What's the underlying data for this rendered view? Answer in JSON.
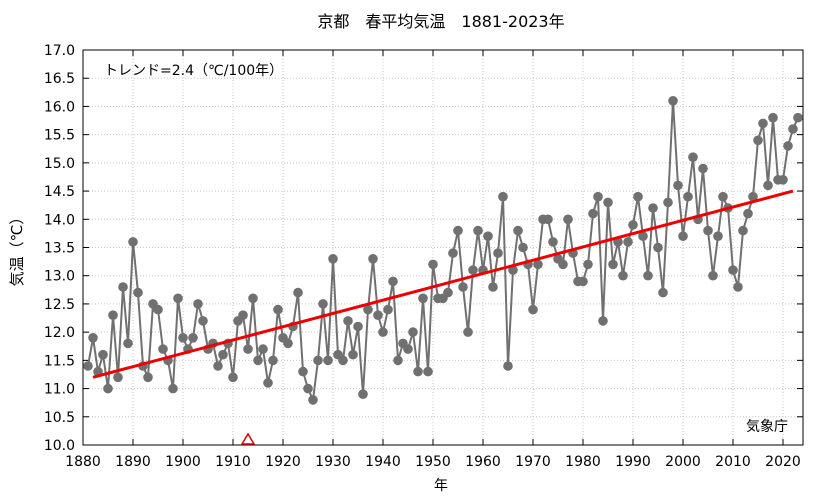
{
  "chart_data": {
    "type": "line",
    "title": "京都　春平均気温　1881-2023年",
    "xlabel": "年",
    "ylabel": "気温（℃）",
    "xlim": [
      1880,
      2024
    ],
    "ylim": [
      10.0,
      17.0
    ],
    "x_ticks": [
      1880,
      1890,
      1900,
      1910,
      1920,
      1930,
      1940,
      1950,
      1960,
      1970,
      1980,
      1990,
      2000,
      2010,
      2020
    ],
    "y_ticks": [
      "10.0",
      "10.5",
      "11.0",
      "11.5",
      "12.0",
      "12.5",
      "13.0",
      "13.5",
      "14.0",
      "14.5",
      "15.0",
      "15.5",
      "16.0",
      "16.5",
      "17.0"
    ],
    "annotation": "トレンド=2.4（℃/100年）",
    "source": "気象庁",
    "grid": true,
    "colors": {
      "series": "#707070",
      "trend": "#ee0000",
      "marker": "#dd0000"
    },
    "series": [
      {
        "x_start": 1881,
        "values": [
          11.4,
          11.9,
          11.3,
          11.6,
          11.0,
          12.3,
          11.2,
          12.8,
          11.8,
          13.6,
          12.7,
          11.4,
          11.2,
          12.5,
          12.4,
          11.7,
          11.5,
          11.0,
          12.6,
          11.9,
          11.7,
          11.9,
          12.5,
          12.2,
          11.7,
          11.8,
          11.4,
          11.6,
          11.8,
          11.2,
          12.2,
          12.3,
          11.7,
          12.6,
          11.5,
          11.7,
          11.1,
          11.5,
          12.4,
          11.9,
          11.8,
          12.1,
          12.7,
          11.3,
          11.0,
          10.8,
          11.5,
          12.5,
          11.5,
          13.3,
          11.6,
          11.5,
          12.2,
          11.6,
          12.1,
          10.9,
          12.4,
          13.3,
          12.3,
          12.0,
          12.4,
          12.9,
          11.5,
          11.8,
          11.7,
          12.0,
          11.3,
          12.6,
          11.3,
          13.2,
          12.6,
          12.6,
          12.7,
          13.4,
          13.8,
          12.8,
          12.0,
          13.1,
          13.8,
          13.1,
          13.7,
          12.8,
          13.4,
          14.4,
          11.4,
          13.1,
          13.8,
          13.5,
          13.2,
          12.4,
          13.2,
          14.0,
          14.0,
          13.6,
          13.3,
          13.2,
          14.0,
          13.4,
          12.9,
          12.9,
          13.2,
          14.1,
          14.4,
          12.2,
          14.3,
          13.2,
          13.6,
          13.0,
          13.6,
          13.9,
          14.4,
          13.7,
          13.0,
          14.2,
          13.5,
          12.7,
          14.3,
          16.1,
          14.6,
          13.7,
          14.4,
          15.1,
          14.0,
          14.9,
          13.8,
          13.0,
          13.7,
          14.4,
          14.2,
          13.1,
          12.8,
          13.8,
          14.1,
          14.4,
          15.4,
          15.7,
          14.6,
          15.8,
          14.7,
          14.7,
          15.3,
          15.6,
          15.8
        ]
      }
    ],
    "trend": {
      "x": [
        1882,
        2022
      ],
      "y": [
        11.2,
        14.5
      ]
    },
    "event_markers": [
      1913
    ]
  }
}
